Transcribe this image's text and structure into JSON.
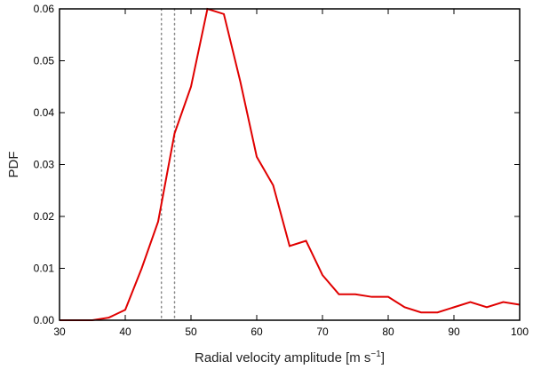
{
  "chart_data": {
    "type": "line",
    "xlabel": "Radial velocity amplitude [m s",
    "xlabel_sup": "−1",
    "xlabel_end": "]",
    "ylabel": "PDF",
    "xlim": [
      30,
      100
    ],
    "ylim": [
      0,
      0.06
    ],
    "x_ticks": [
      "30",
      "40",
      "50",
      "60",
      "70",
      "80",
      "90",
      "100"
    ],
    "y_ticks": [
      "0.00",
      "0.01",
      "0.02",
      "0.03",
      "0.04",
      "0.05",
      "0.06"
    ],
    "grid": false,
    "series": [
      {
        "color": "#e00000",
        "x": [
          30,
          32.5,
          35,
          37.5,
          40,
          42.5,
          45,
          47.5,
          50,
          52.5,
          55,
          57.5,
          60,
          62.5,
          65,
          67.5,
          70,
          72.5,
          75,
          77.5,
          80,
          82.5,
          85,
          87.5,
          90,
          92.5,
          95,
          97.5,
          100
        ],
        "y": [
          0.0,
          0.0,
          0.0,
          0.0005,
          0.002,
          0.01,
          0.019,
          0.036,
          0.045,
          0.06,
          0.059,
          0.046,
          0.0315,
          0.026,
          0.0143,
          0.0153,
          0.0087,
          0.005,
          0.005,
          0.0045,
          0.0045,
          0.0025,
          0.0015,
          0.0015,
          0.0025,
          0.0035,
          0.0025,
          0.0035,
          0.003
        ]
      }
    ],
    "vlines": [
      {
        "x": 45.5,
        "color": "#888888",
        "style": "dotted"
      },
      {
        "x": 47.5,
        "color": "#888888",
        "style": "dotted"
      }
    ]
  }
}
